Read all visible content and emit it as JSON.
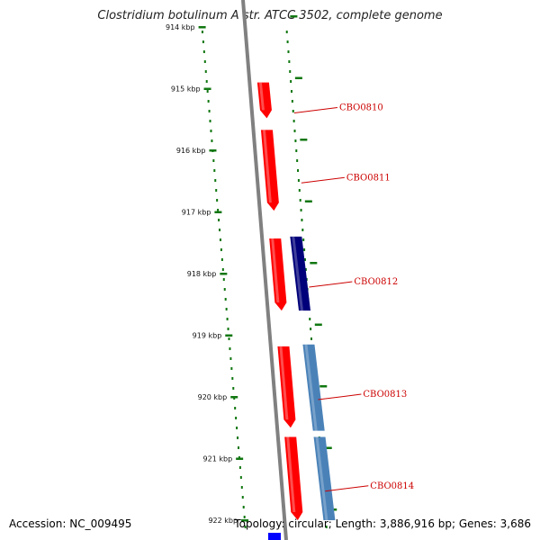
{
  "title": "Clostridium botulinum A str. ATCC 3502, complete genome",
  "accession": "Accession: NC_009495",
  "genome_info": "Topology: circular; Length: 3,886,916 bp; Genes: 3,686",
  "ticks": [
    "914 kbp",
    "915 kbp",
    "916 kbp",
    "917 kbp",
    "918 kbp",
    "919 kbp",
    "920 kbp",
    "921 kbp",
    "922 kbp"
  ],
  "genes": [
    {
      "label": "CBO0810",
      "start_kbp": 914.9,
      "end_kbp": 915.48
    },
    {
      "label": "CBO0811",
      "start_kbp": 915.67,
      "end_kbp": 916.98
    },
    {
      "label": "CBO0812",
      "start_kbp": 917.43,
      "end_kbp": 918.6
    },
    {
      "label": "CBO0813",
      "start_kbp": 919.18,
      "end_kbp": 920.5
    },
    {
      "label": "CBO0814",
      "start_kbp": 920.65,
      "end_kbp": 922.0
    }
  ],
  "colors": {
    "gene_forward": "#ff0000",
    "track_navy": "#00007a",
    "track_steel": "#4a82b8",
    "track_blue": "#0000ff",
    "tick_green": "#117711",
    "backbone": "#808080",
    "label_red": "#cc0000"
  }
}
